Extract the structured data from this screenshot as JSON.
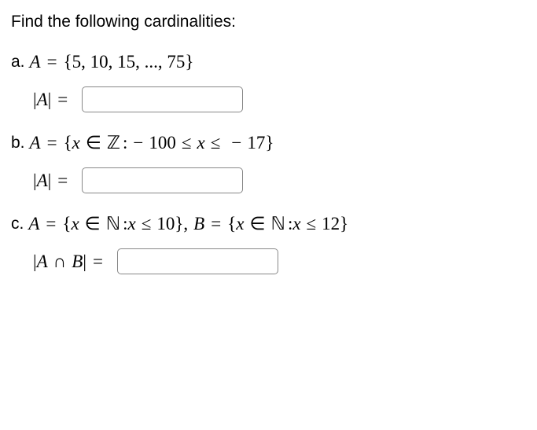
{
  "prompt": "Find the following cardinalities:",
  "partA": {
    "label": "a.",
    "setDef_A": "A",
    "setDef_eq": "=",
    "setDef_open": "{",
    "setDef_content": "5, 10, 15, ..., 75",
    "setDef_close": "}",
    "answer_bar1": "|",
    "answer_A": "A",
    "answer_bar2": "|",
    "answer_eq": "="
  },
  "partB": {
    "label": "b.",
    "A": "A",
    "eq": "=",
    "open": "{",
    "x": "x",
    "in": "∈",
    "Z": "ℤ",
    "colon": ":",
    "neg1": "−",
    "n100": "100",
    "le1": "≤",
    "x2": "x",
    "le2": "≤",
    "neg2": "−",
    "n17": "17",
    "close": "}",
    "answer_bar1": "|",
    "answer_A": "A",
    "answer_bar2": "|",
    "answer_eq": "="
  },
  "partC": {
    "label": "c.",
    "A": "A",
    "eq1": "=",
    "open1": "{",
    "x1": "x",
    "in1": "∈",
    "N1": "ℕ",
    "colon1": ":",
    "x1b": "x",
    "le1": "≤",
    "n10": "10",
    "close1": "}",
    "comma": ",",
    "B": "B",
    "eq2": "=",
    "open2": "{",
    "x2": "x",
    "in2": "∈",
    "N2": "ℕ",
    "colon2": ":",
    "x2b": "x",
    "le2": "≤",
    "n12": "12",
    "close2": "}",
    "answer_bar1": "|",
    "answer_A": "A",
    "answer_cap": "∩",
    "answer_B": "B",
    "answer_bar2": "|",
    "answer_eq": "="
  },
  "style": {
    "text_color": "#000000",
    "background_color": "#ffffff",
    "input_border_color": "#888888",
    "input_border_radius": 5,
    "body_fontsize": 21,
    "math_fontsize": 23,
    "input_width": 205,
    "input_height": 33
  }
}
